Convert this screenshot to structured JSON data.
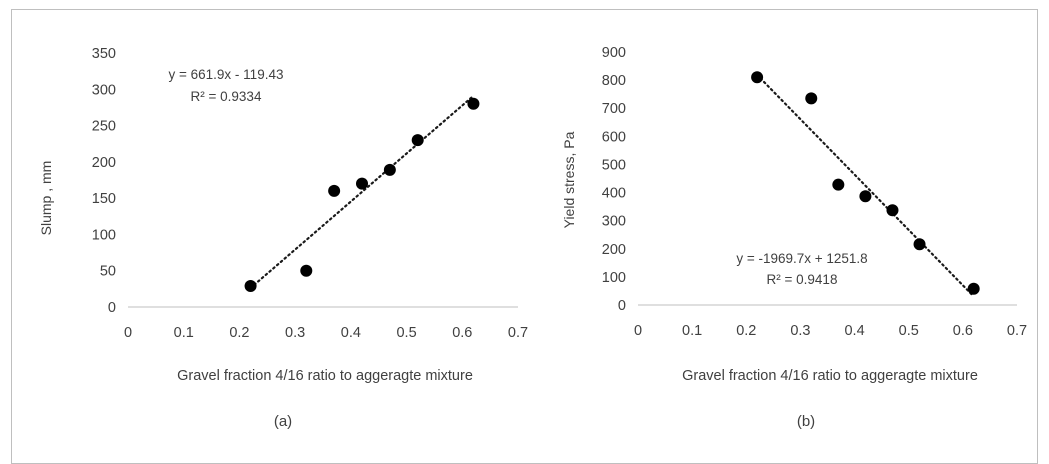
{
  "chart_data": [
    {
      "type": "scatter",
      "panel_label": "(a)",
      "xlabel": "Gravel fraction 4/16 ratio to aggeragte mixture",
      "ylabel": "Slump , mm",
      "xlim": [
        0,
        0.7
      ],
      "ylim": [
        0,
        350
      ],
      "x_ticks": [
        "0",
        "0.1",
        "0.2",
        "0.3",
        "0.4",
        "0.5",
        "0.6",
        "0.7"
      ],
      "y_ticks": [
        "0",
        "50",
        "100",
        "150",
        "200",
        "250",
        "300",
        "350"
      ],
      "grid": false,
      "points": [
        {
          "x": 0.22,
          "y": 29
        },
        {
          "x": 0.32,
          "y": 50
        },
        {
          "x": 0.37,
          "y": 160
        },
        {
          "x": 0.42,
          "y": 170
        },
        {
          "x": 0.47,
          "y": 189
        },
        {
          "x": 0.52,
          "y": 230
        },
        {
          "x": 0.62,
          "y": 280
        }
      ],
      "trendline": {
        "slope": 661.9,
        "intercept": -119.43,
        "style": "dotted"
      },
      "equation_text": "y = 661.9x - 119.43",
      "r2_text": "R² = 0.9334",
      "marker_color": "#000000"
    },
    {
      "type": "scatter",
      "panel_label": "(b)",
      "xlabel": "Gravel fraction 4/16 ratio to aggeragte mixture",
      "ylabel": "Yield stress, Pa",
      "xlim": [
        0,
        0.7
      ],
      "ylim": [
        0,
        900
      ],
      "x_ticks": [
        "0",
        "0.1",
        "0.2",
        "0.3",
        "0.4",
        "0.5",
        "0.6",
        "0.7"
      ],
      "y_ticks": [
        "0",
        "100",
        "200",
        "300",
        "400",
        "500",
        "600",
        "700",
        "800",
        "900"
      ],
      "grid": false,
      "points": [
        {
          "x": 0.22,
          "y": 810
        },
        {
          "x": 0.32,
          "y": 735
        },
        {
          "x": 0.37,
          "y": 428
        },
        {
          "x": 0.42,
          "y": 387
        },
        {
          "x": 0.47,
          "y": 337
        },
        {
          "x": 0.52,
          "y": 216
        },
        {
          "x": 0.62,
          "y": 58
        }
      ],
      "trendline": {
        "slope": -1969.7,
        "intercept": 1251.8,
        "style": "dotted"
      },
      "equation_text": "y = -1969.7x + 1251.8",
      "r2_text": "R² = 0.9418",
      "marker_color": "#000000"
    }
  ]
}
